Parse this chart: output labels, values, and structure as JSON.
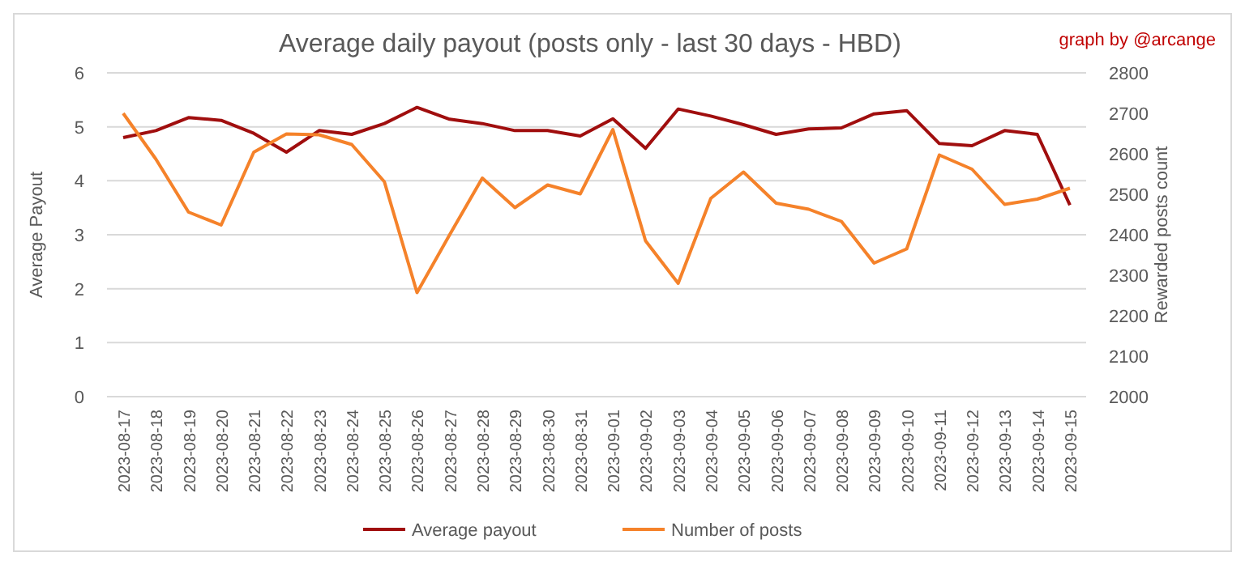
{
  "chart_data": {
    "type": "line",
    "title": "Average daily payout (posts only - last 30 days - HBD)",
    "annotations": [
      "graph by @arcange"
    ],
    "ylabel": "Average Payout",
    "y2label": "Rewarded posts count",
    "categories": [
      "2023-08-17",
      "2023-08-18",
      "2023-08-19",
      "2023-08-20",
      "2023-08-21",
      "2023-08-22",
      "2023-08-23",
      "2023-08-24",
      "2023-08-25",
      "2023-08-26",
      "2023-08-27",
      "2023-08-28",
      "2023-08-29",
      "2023-08-30",
      "2023-08-31",
      "2023-09-01",
      "2023-09-02",
      "2023-09-03",
      "2023-09-04",
      "2023-09-05",
      "2023-09-06",
      "2023-09-07",
      "2023-09-08",
      "2023-09-09",
      "2023-09-10",
      "2023-09-11",
      "2023-09-12",
      "2023-09-13",
      "2023-09-14",
      "2023-09-15"
    ],
    "series": [
      {
        "name": "Average payout",
        "color": "#a00e0e",
        "values": [
          4.8,
          4.93,
          5.17,
          5.12,
          4.88,
          4.53,
          4.93,
          4.86,
          5.06,
          5.36,
          5.14,
          5.06,
          4.93,
          4.93,
          4.83,
          5.15,
          4.6,
          5.33,
          5.2,
          5.04,
          4.86,
          4.96,
          4.98,
          5.24,
          5.3,
          4.69,
          4.65,
          4.93,
          4.86,
          3.55
        ]
      },
      {
        "name": "Number of posts",
        "color": "#f5822a",
        "axis": "y2",
        "values": [
          2700,
          2587,
          2456,
          2424,
          2604,
          2649,
          2647,
          2623,
          2531,
          2257,
          2400,
          2540,
          2467,
          2523,
          2501,
          2660,
          2385,
          2280,
          2490,
          2555,
          2478,
          2463,
          2433,
          2330,
          2365,
          2597,
          2562,
          2475,
          2488,
          2515
        ]
      }
    ],
    "ylim": [
      0,
      6
    ],
    "yticks": [
      0,
      1,
      2,
      3,
      4,
      5,
      6
    ],
    "y2lim": [
      2000,
      2800
    ],
    "y2ticks": [
      2000,
      2100,
      2200,
      2300,
      2400,
      2500,
      2600,
      2700,
      2800
    ],
    "grid": "y",
    "legend": "bottom",
    "marker": "none",
    "line_style": "solid"
  }
}
